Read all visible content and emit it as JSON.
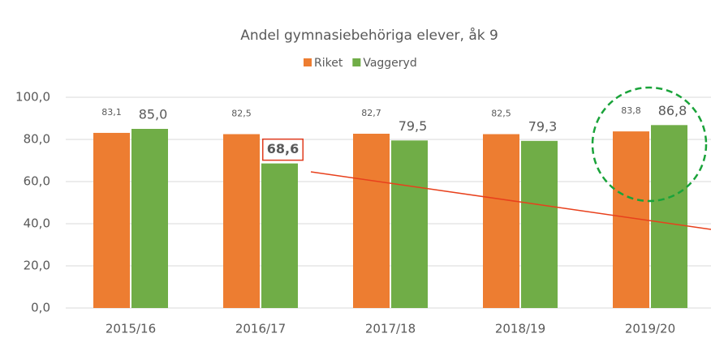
{
  "chart_data": {
    "type": "bar",
    "title": "Andel gymnasiebehöriga elever, åk 9",
    "categories": [
      "2015/16",
      "2016/17",
      "2017/18",
      "2018/19",
      "2019/20"
    ],
    "series": [
      {
        "name": "Riket",
        "color": "#ed7d31",
        "values": [
          83.1,
          82.5,
          82.7,
          82.5,
          83.8
        ],
        "value_labels": [
          "83,1",
          "82,5",
          "82,7",
          "82,5",
          "83,8"
        ]
      },
      {
        "name": "Vaggeryd",
        "color": "#70ad47",
        "values": [
          85.0,
          68.6,
          79.5,
          79.3,
          86.8
        ],
        "value_labels": [
          "85,0",
          "68,6",
          "79,5",
          "79,3",
          "86,8"
        ]
      }
    ],
    "ylim": [
      0,
      100
    ],
    "yticks": [
      {
        "value": 0,
        "label": "0,0"
      },
      {
        "value": 20,
        "label": "20,0"
      },
      {
        "value": 40,
        "label": "40,0"
      },
      {
        "value": 60,
        "label": "60,0"
      },
      {
        "value": 80,
        "label": "80,0"
      },
      {
        "value": 100,
        "label": "100,0"
      }
    ],
    "grid": true,
    "legend": "top"
  }
}
